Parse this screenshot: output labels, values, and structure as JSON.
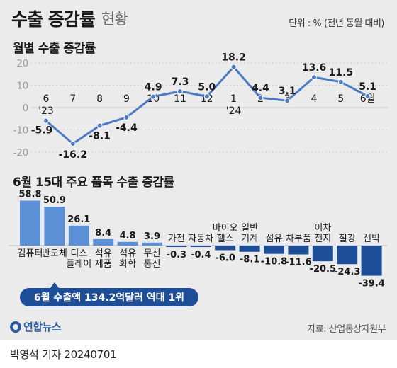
{
  "header": {
    "title": "수출 증감률",
    "subtitle": "현황",
    "unit": "단위 : % (전년 동월 대비)"
  },
  "chart_data": [
    {
      "type": "line",
      "title": "월별 수출 증감률",
      "x": [
        "6",
        "7",
        "8",
        "9",
        "10",
        "11",
        "12",
        "1",
        "2",
        "3",
        "4",
        "5",
        "6월"
      ],
      "x_year_labels": [
        {
          "index": 0,
          "label": "'23"
        },
        {
          "index": 7,
          "label": "'24"
        }
      ],
      "values": [
        -5.9,
        -16.2,
        -8.1,
        -4.4,
        4.9,
        7.3,
        5.0,
        18.2,
        4.4,
        3.1,
        13.6,
        11.5,
        5.1
      ],
      "value_labels": [
        "-5.9",
        "-16.2",
        "-8.1",
        "-4.4",
        "4.9",
        "7.3",
        "5.0",
        "18.2",
        "4.4",
        "3.1",
        "13.6",
        "11.5",
        "5.1"
      ],
      "yticks": [
        "20",
        "10",
        "0",
        "-10",
        "-20"
      ],
      "ylim": [
        -20,
        20
      ],
      "grid": true,
      "color": "#4a7bc4"
    },
    {
      "type": "bar",
      "title": "6월 15대 주요 품목 수출 증감률",
      "categories": [
        [
          "컴퓨터"
        ],
        [
          "반도체"
        ],
        [
          "디스",
          "플레이"
        ],
        [
          "석유",
          "제품"
        ],
        [
          "석유",
          "화학"
        ],
        [
          "무선",
          "통신"
        ],
        [
          "가전"
        ],
        [
          "자동차"
        ],
        [
          "바이오",
          "헬스"
        ],
        [
          "일반",
          "기계"
        ],
        [
          "섬유"
        ],
        [
          "차부품"
        ],
        [
          "이차",
          "전지"
        ],
        [
          "철강"
        ],
        [
          "선박"
        ]
      ],
      "values": [
        58.8,
        50.9,
        26.1,
        8.4,
        4.8,
        3.9,
        -0.3,
        -0.4,
        -6.0,
        -8.1,
        -10.8,
        -11.6,
        -20.5,
        -24.3,
        -39.4
      ],
      "value_labels": [
        "58.8",
        "50.9",
        "26.1",
        "8.4",
        "4.8",
        "3.9",
        "-0.3",
        "-0.4",
        "-6.0",
        "-8.1",
        "-10.8",
        "-11.6",
        "-20.5",
        "-24.3",
        "-39.4"
      ],
      "positive_color": "#5b8fd6",
      "negative_color": "#1f4e98",
      "annotation": "6월 수출액 134.2억달러 역대 1위",
      "annotation_color": "#1f4e98"
    }
  ],
  "footer": {
    "source": "자료: 산업통상자원부",
    "logo": "연합뉴스",
    "byline": "박영석 기자 20240701"
  }
}
